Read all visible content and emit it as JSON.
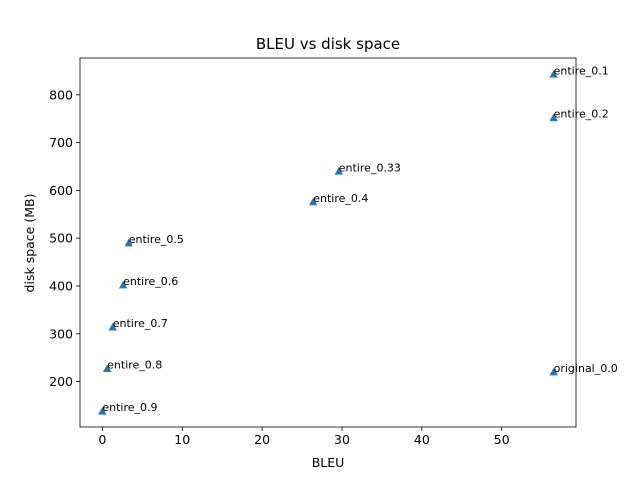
{
  "chart_data": {
    "type": "scatter",
    "title": "BLEU vs disk space",
    "xlabel": "BLEU",
    "ylabel": "disk space (MB)",
    "xlim": [
      -2.8,
      59.3
    ],
    "ylim": [
      105,
      877
    ],
    "x_ticks": [
      0,
      10,
      20,
      30,
      40,
      50
    ],
    "y_ticks": [
      200,
      300,
      400,
      500,
      600,
      700,
      800
    ],
    "marker": "triangle",
    "marker_color": "#1f77b4",
    "grid": false,
    "legend": "none",
    "points": [
      {
        "label": "entire_0.1",
        "x": 56.5,
        "y": 843
      },
      {
        "label": "entire_0.2",
        "x": 56.5,
        "y": 752
      },
      {
        "label": "entire_0.33",
        "x": 29.6,
        "y": 640
      },
      {
        "label": "entire_0.4",
        "x": 26.4,
        "y": 576
      },
      {
        "label": "entire_0.5",
        "x": 3.3,
        "y": 490
      },
      {
        "label": "entire_0.6",
        "x": 2.6,
        "y": 402
      },
      {
        "label": "entire_0.7",
        "x": 1.3,
        "y": 314
      },
      {
        "label": "entire_0.8",
        "x": 0.6,
        "y": 227
      },
      {
        "label": "entire_0.9",
        "x": 0.0,
        "y": 138
      },
      {
        "label": "original_0.0",
        "x": 56.5,
        "y": 220
      }
    ]
  }
}
